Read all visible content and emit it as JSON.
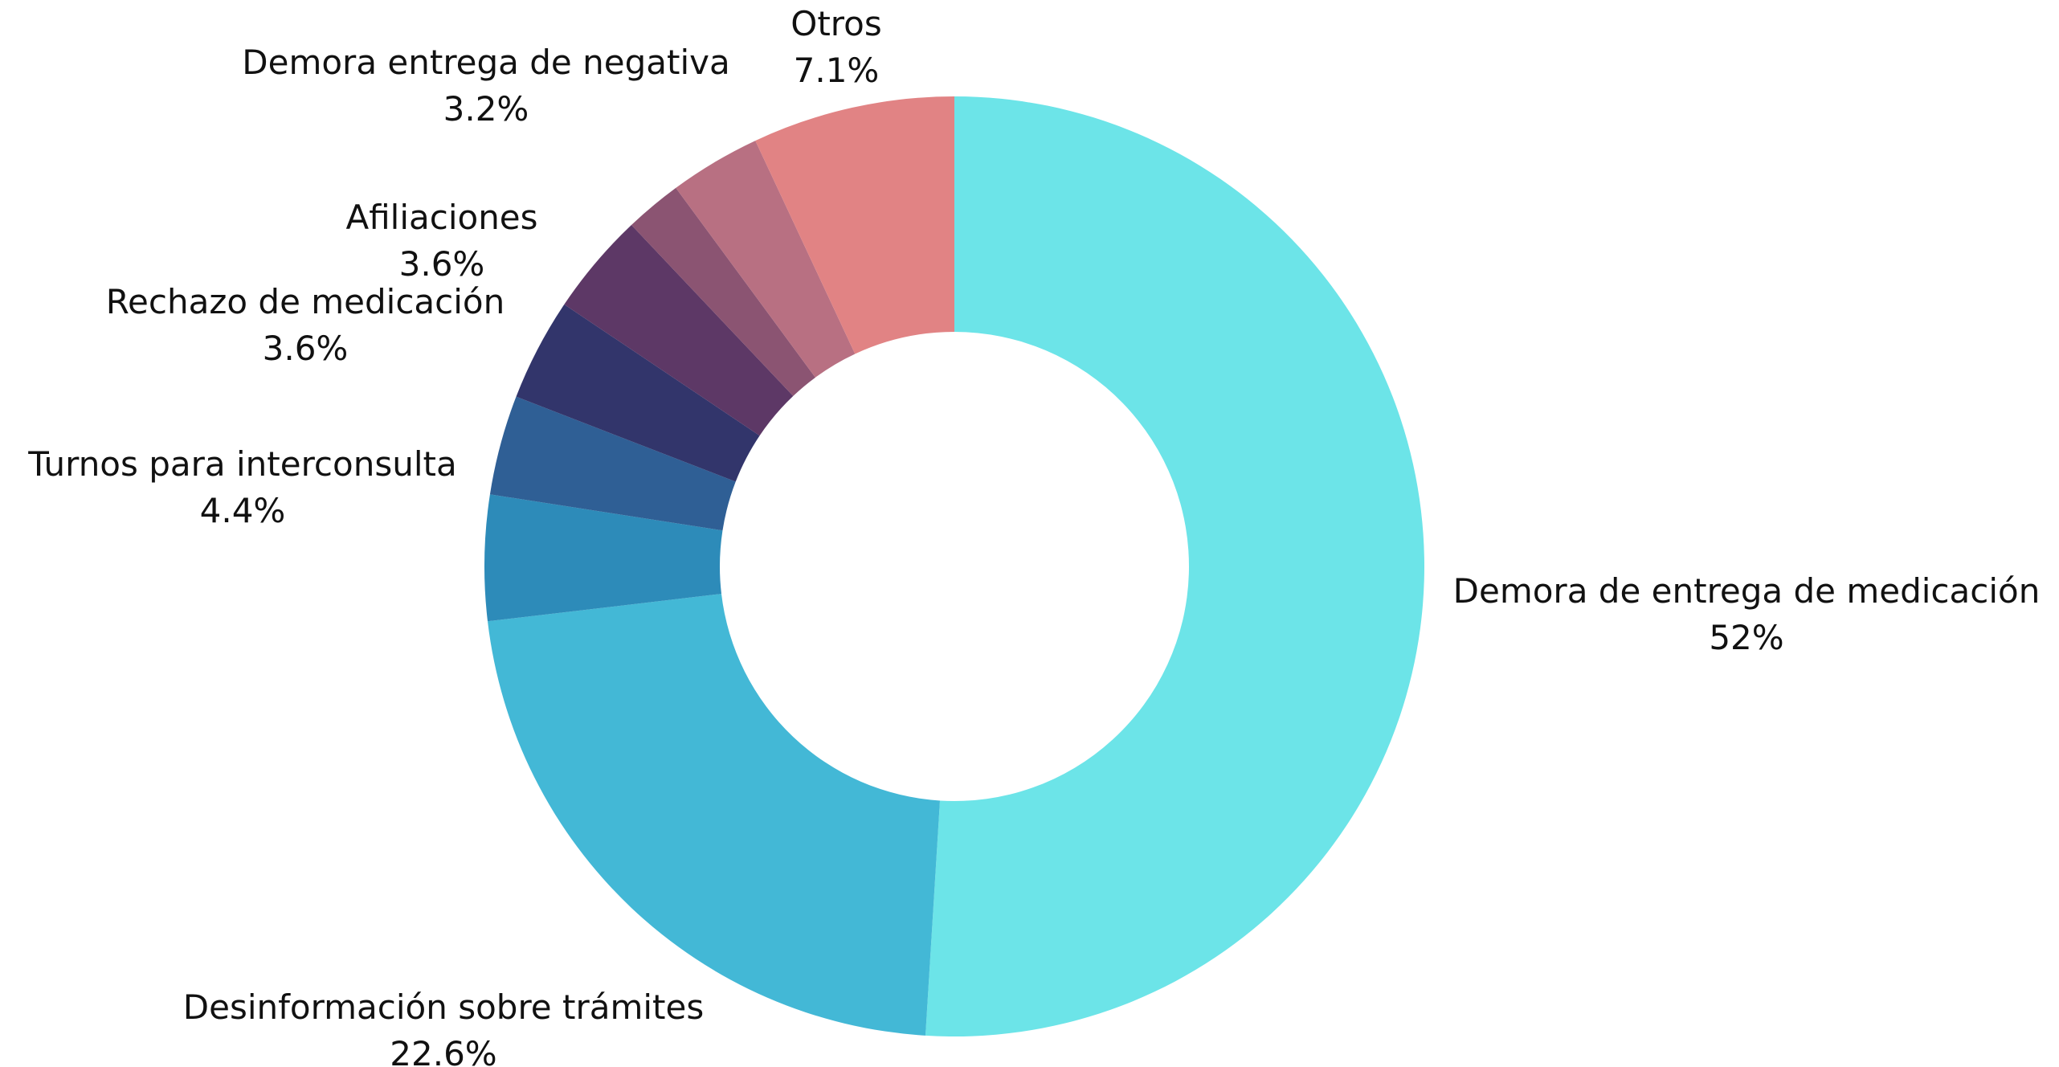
{
  "chart_data": {
    "type": "pie",
    "donut": true,
    "legend": "none",
    "slices": [
      {
        "label": "Demora de entrega de medicación",
        "value": 52,
        "value_label": "52%",
        "color": "#6CE4E8"
      },
      {
        "label": "Desinformación sobre trámites",
        "value": 22.6,
        "value_label": "22.6%",
        "color": "#43B8D6"
      },
      {
        "label": "Turnos para interconsulta",
        "value": 4.4,
        "value_label": "4.4%",
        "color": "#2D8BB9"
      },
      {
        "label": "",
        "value": 3.5,
        "value_label": "",
        "color": "#2F5F95"
      },
      {
        "label": "Rechazo de medicación",
        "value": 3.6,
        "value_label": "3.6%",
        "color": "#32356B"
      },
      {
        "label": "Afiliaciones",
        "value": 3.6,
        "value_label": "3.6%",
        "color": "#5D3866"
      },
      {
        "label": "",
        "value": 2.0,
        "value_label": "",
        "color": "#8B5472"
      },
      {
        "label": "Demora entrega de negativa",
        "value": 3.2,
        "value_label": "3.2%",
        "color": "#B87082"
      },
      {
        "label": "Otros",
        "value": 7.1,
        "value_label": "7.1%",
        "color": "#E18384"
      }
    ]
  }
}
